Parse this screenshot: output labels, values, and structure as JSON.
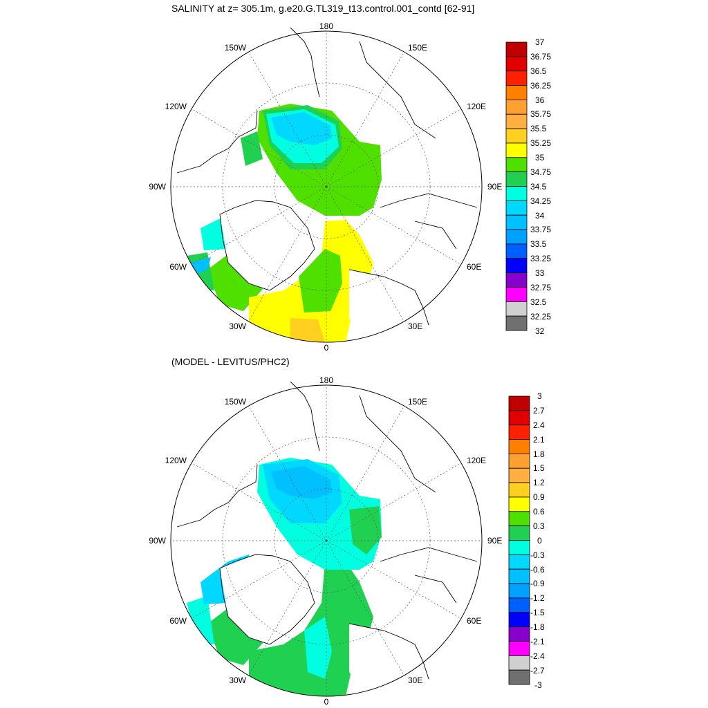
{
  "panels": [
    {
      "title": "SALINITY at z= 305.1m, g.e20.G.TL319_t13.control.001_contd [62-91]",
      "lon_labels": [
        "180",
        "150E",
        "120E",
        "90E",
        "60E",
        "30E",
        "0",
        "30W",
        "60W",
        "90W",
        "120W",
        "150W"
      ],
      "colorbar": {
        "levels": [
          "37",
          "36.75",
          "36.5",
          "36.25",
          "36",
          "35.75",
          "35.5",
          "35.25",
          "35",
          "34.75",
          "34.5",
          "34.25",
          "34",
          "33.75",
          "33.5",
          "33.25",
          "33",
          "32.75",
          "32.5",
          "32.25",
          "32"
        ],
        "colors": [
          "#c00000",
          "#e00000",
          "#ff2000",
          "#ff8000",
          "#ffa030",
          "#ffb040",
          "#ffd020",
          "#ffff00",
          "#50e000",
          "#20d050",
          "#00ffe0",
          "#00d8ff",
          "#00c0ff",
          "#00a0ff",
          "#0060ff",
          "#0000ff",
          "#8800cc",
          "#ff00ff",
          "#d0d0d0",
          "#707070"
        ]
      }
    },
    {
      "title": "(MODEL - LEVITUS/PHC2)",
      "lon_labels": [
        "180",
        "150E",
        "120E",
        "90E",
        "60E",
        "30E",
        "0",
        "30W",
        "60W",
        "90W",
        "120W",
        "150W"
      ],
      "colorbar": {
        "levels": [
          "3",
          "2.7",
          "2.4",
          "2.1",
          "1.8",
          "1.5",
          "1.2",
          "0.9",
          "0.6",
          "0.3",
          "0",
          "-0.3",
          "-0.6",
          "-0.9",
          "-1.2",
          "-1.5",
          "-1.8",
          "-2.1",
          "-2.4",
          "-2.7",
          "-3"
        ],
        "colors": [
          "#c00000",
          "#e00000",
          "#ff2000",
          "#ff8000",
          "#ffa030",
          "#ffb040",
          "#ffd020",
          "#ffff00",
          "#50e000",
          "#20d050",
          "#00ffe0",
          "#00d8ff",
          "#00c0ff",
          "#00a0ff",
          "#0060ff",
          "#0000ff",
          "#8800cc",
          "#ff00ff",
          "#d0d0d0",
          "#707070"
        ]
      }
    }
  ]
}
